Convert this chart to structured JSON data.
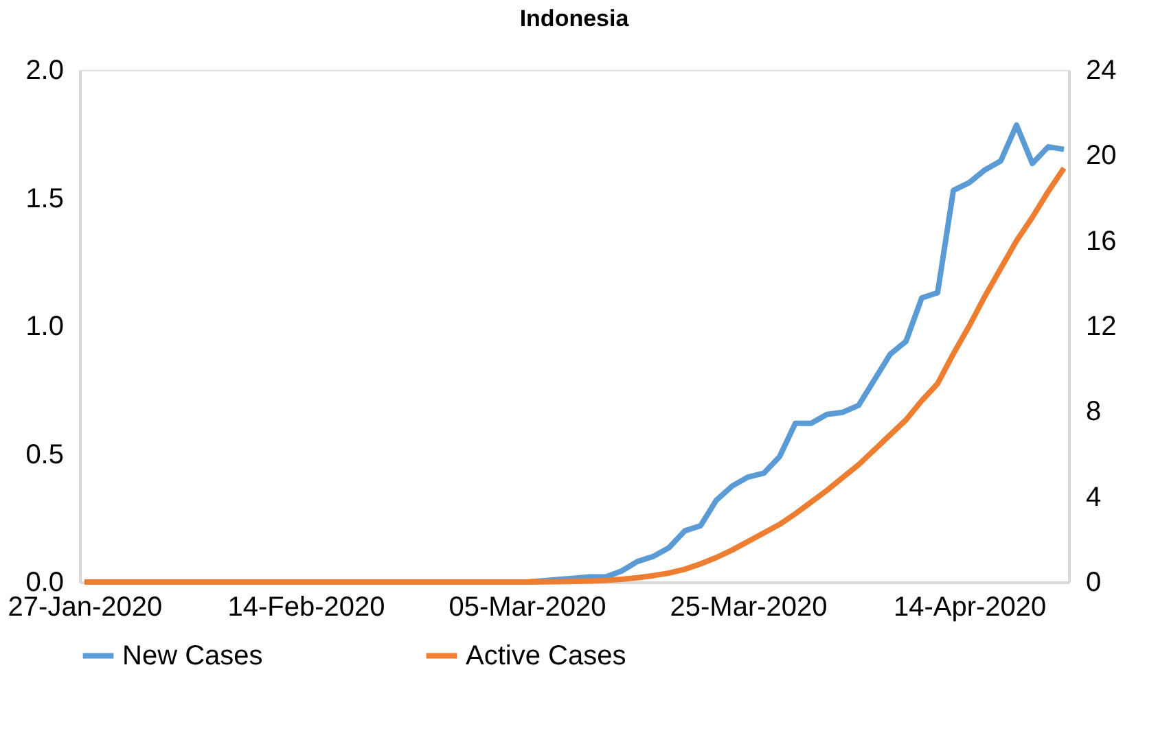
{
  "chart_data": {
    "type": "line",
    "title": "Indonesia",
    "categories": [
      "27-Jan-2020",
      null,
      null,
      null,
      null,
      null,
      null,
      null,
      null,
      null,
      null,
      null,
      null,
      null,
      "14-Feb-2020",
      null,
      null,
      null,
      null,
      null,
      null,
      null,
      null,
      null,
      null,
      null,
      null,
      null,
      "05-Mar-2020",
      null,
      null,
      null,
      null,
      null,
      null,
      null,
      null,
      null,
      null,
      null,
      null,
      null,
      "25-Mar-2020",
      null,
      null,
      null,
      null,
      null,
      null,
      null,
      null,
      null,
      null,
      null,
      null,
      null,
      "14-Apr-2020",
      null,
      null,
      null,
      null,
      null,
      null
    ],
    "series": [
      {
        "name": "New Cases",
        "color": "#5b9bd5",
        "values": [
          null,
          null,
          null,
          null,
          null,
          null,
          null,
          null,
          null,
          null,
          null,
          null,
          null,
          null,
          null,
          null,
          null,
          null,
          null,
          null,
          null,
          null,
          null,
          null,
          null,
          null,
          null,
          null,
          0,
          0.005,
          0.01,
          0.015,
          0.02,
          0.02,
          0.043,
          0.08,
          0.1,
          0.134,
          0.2,
          0.22,
          0.32,
          0.375,
          0.41,
          0.425,
          0.49,
          0.62,
          0.62,
          0.655,
          0.663,
          0.69,
          0.79,
          0.89,
          0.94,
          1.11,
          1.13,
          1.53,
          1.56,
          1.61,
          1.645,
          1.785,
          1.635,
          1.7,
          1.69
        ]
      },
      {
        "name": "Active Cases",
        "color": "#ed7d31",
        "axis": "y2",
        "values": [
          0,
          0,
          0,
          0,
          0,
          0,
          0,
          0,
          0,
          0,
          0,
          0,
          0,
          0,
          0,
          0,
          0,
          0,
          0,
          0,
          0,
          0,
          0,
          0,
          0,
          0,
          0,
          0,
          0,
          0.01,
          0.02,
          0.03,
          0.05,
          0.08,
          0.13,
          0.2,
          0.3,
          0.42,
          0.6,
          0.85,
          1.15,
          1.5,
          1.9,
          2.3,
          2.7,
          3.2,
          3.75,
          4.3,
          4.9,
          5.5,
          6.2,
          6.9,
          7.6,
          8.5,
          9.3,
          10.7,
          12.0,
          13.4,
          14.7,
          16.0,
          17.1,
          18.3,
          19.4
        ]
      }
    ],
    "ylim": [
      0,
      2
    ],
    "yticks": [
      {
        "value": 0,
        "label": "0.0"
      },
      {
        "value": 0.5,
        "label": "0.5"
      },
      {
        "value": 1,
        "label": "1.0"
      },
      {
        "value": 1.5,
        "label": "1.5"
      },
      {
        "value": 2,
        "label": "2.0"
      }
    ],
    "y2lim": [
      0,
      24
    ],
    "y2ticks": [
      0,
      4,
      8,
      12,
      16,
      20,
      24
    ],
    "grid": false,
    "legend": "bottom",
    "marker": "none",
    "line_style": "solid"
  }
}
